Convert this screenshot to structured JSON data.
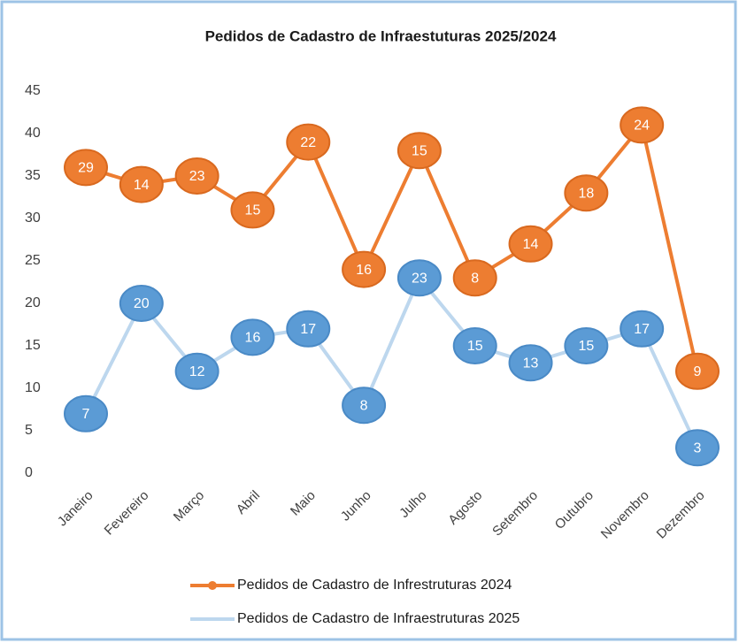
{
  "chart_data": {
    "type": "line",
    "stacked": true,
    "title": "Pedidos de Cadastro  de Infraestuturas  2025/2024",
    "categories": [
      "Janeiro",
      "Fevereiro",
      "Março",
      "Abril",
      "Maio",
      "Junho",
      "Julho",
      "Agosto",
      "Setembro",
      "Outubro",
      "Novembro",
      "Dezembro"
    ],
    "series": [
      {
        "name": "Pedidos de Cadastro de Infrestruturas 2024",
        "color": "#ed7d31",
        "line_color": "#ed7d31",
        "values": [
          29,
          14,
          23,
          15,
          22,
          16,
          15,
          8,
          14,
          18,
          24,
          9
        ]
      },
      {
        "name": "Pedidos de Cadastro de Infraestruturas 2025",
        "color": "#5b9bd5",
        "line_color": "#bdd7ee",
        "values": [
          7,
          20,
          12,
          16,
          17,
          8,
          23,
          15,
          13,
          15,
          17,
          3
        ]
      }
    ],
    "ylim": [
      0,
      45
    ],
    "yticks": [
      0,
      5,
      10,
      15,
      20,
      25,
      30,
      35,
      40,
      45
    ],
    "grid": false,
    "legend": "bottom"
  }
}
